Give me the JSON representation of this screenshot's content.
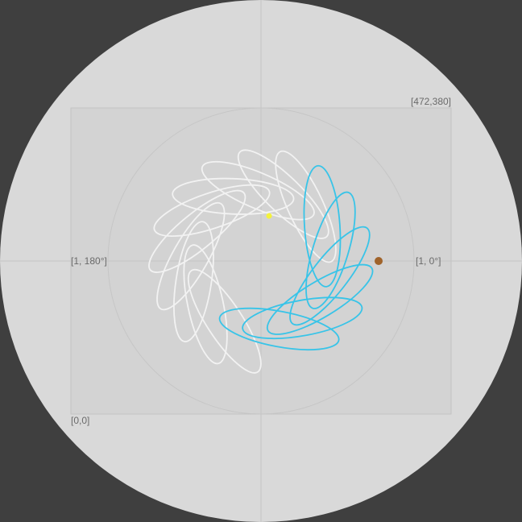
{
  "labels": {
    "top_right": "[472,380]",
    "bottom_left": "[0,0]",
    "left": "[1, 180°]",
    "right": "[1, 0°]"
  },
  "colors": {
    "background": "#3f3f3f",
    "disc": "#d9d9d9",
    "inner_rect": "#d3d3d3",
    "guide": "#c4c4c4",
    "trace_past": "#f2f2f2",
    "trace_active": "#38c4e8",
    "start_dot": "#a0632a",
    "end_dot": "#f4f23a"
  },
  "curve": {
    "loops": 16,
    "active_loops": 6,
    "petal_fraction": 0.55,
    "petal_width": 0.21
  }
}
